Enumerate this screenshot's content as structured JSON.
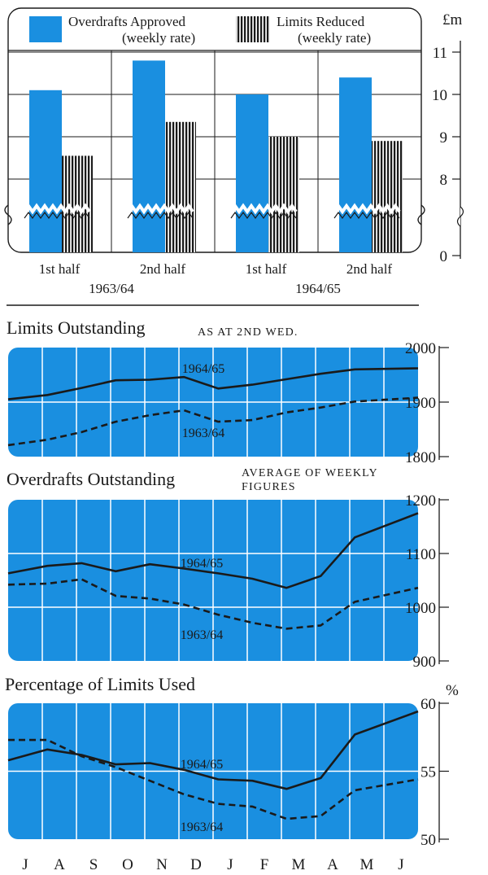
{
  "chart_data": [
    {
      "type": "bar",
      "categories": [
        "1st half",
        "2nd half",
        "1st half",
        "2nd half"
      ],
      "groups": [
        "1963/64",
        "1964/65"
      ],
      "unit": "£m",
      "yticks": [
        "0",
        "8",
        "9",
        "10",
        "11"
      ],
      "series": [
        {
          "name": "Overdrafts Approved",
          "name2": "(weekly rate)",
          "values": [
            10.1,
            10.8,
            10.0,
            10.4
          ],
          "color": "#1a8fe0"
        },
        {
          "name": "Limits Reduced",
          "name2": "(weekly rate)",
          "values": [
            8.55,
            9.35,
            9.0,
            8.9
          ],
          "color": "#1a1a1a"
        }
      ]
    },
    {
      "type": "line",
      "title": "Limits Outstanding",
      "note": "AS AT 2ND WED.",
      "ylim": [
        1800,
        2000
      ],
      "yticks": [
        "1800",
        "1900",
        "2000"
      ],
      "series": [
        {
          "name": "1964/65",
          "values": [
            1905,
            1913,
            1926,
            1940,
            1941,
            1946,
            1925,
            1932,
            1942,
            1952,
            1960,
            1962
          ]
        },
        {
          "name": "1963/64",
          "values": [
            1821,
            1831,
            1845,
            1864,
            1876,
            1885,
            1864,
            1867,
            1881,
            1890,
            1901,
            1908
          ]
        }
      ]
    },
    {
      "type": "line",
      "title": "Overdrafts Outstanding",
      "note": "AVERAGE OF WEEKLY FIGURES",
      "ylim": [
        900,
        1200
      ],
      "yticks": [
        "900",
        "1000",
        "1100",
        "1200"
      ],
      "series": [
        {
          "name": "1964/65",
          "values": [
            1063,
            1077,
            1082,
            1067,
            1080,
            1072,
            1063,
            1053,
            1036,
            1058,
            1130,
            1175
          ]
        },
        {
          "name": "1963/64",
          "values": [
            1042,
            1044,
            1052,
            1021,
            1016,
            1005,
            986,
            971,
            960,
            966,
            1010,
            1036
          ]
        }
      ]
    },
    {
      "type": "line",
      "title": "Percentage of Limits Used",
      "unit": "%",
      "ylim": [
        50,
        60
      ],
      "yticks": [
        "50",
        "55",
        "60"
      ],
      "months": [
        "J",
        "A",
        "S",
        "O",
        "N",
        "D",
        "J",
        "F",
        "M",
        "A",
        "M",
        "J"
      ],
      "series": [
        {
          "name": "1964/65",
          "values": [
            55.8,
            56.6,
            56.2,
            55.5,
            55.6,
            55.1,
            54.4,
            54.3,
            53.7,
            54.5,
            57.7,
            59.4
          ]
        },
        {
          "name": "1963/64",
          "values": [
            57.3,
            57.3,
            56.1,
            55.3,
            54.3,
            53.3,
            52.6,
            52.4,
            51.5,
            51.7,
            53.6,
            54.4
          ]
        }
      ]
    }
  ]
}
